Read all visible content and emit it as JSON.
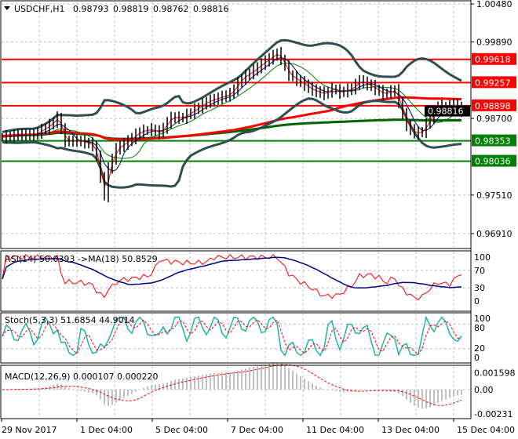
{
  "header": {
    "symbol": "USDCHF,H1",
    "open": "0.98793",
    "high": "0.98819",
    "low": "0.98762",
    "close": "0.98816"
  },
  "chart_data": {
    "type": "line",
    "title": "USDCHF,H1",
    "series": [
      {
        "name": "close",
        "bars": [
          0,
          4,
          8,
          12,
          14,
          16,
          20,
          23,
          24,
          26,
          27,
          29,
          32,
          35,
          38,
          40,
          43,
          46,
          49,
          52,
          55,
          58,
          61,
          64,
          67,
          70,
          71,
          73,
          76,
          79,
          82,
          84,
          86,
          89,
          91,
          94,
          97,
          100,
          101,
          103,
          105,
          107,
          109,
          111,
          113,
          115,
          117
        ],
        "values": [
          0.98409,
          0.98445,
          0.98445,
          0.98592,
          0.98713,
          0.98348,
          0.98348,
          0.98287,
          0.98104,
          0.97495,
          0.97921,
          0.98226,
          0.98348,
          0.98494,
          0.98531,
          0.9847,
          0.98713,
          0.98713,
          0.98835,
          0.98957,
          0.99018,
          0.99079,
          0.99323,
          0.99444,
          0.99591,
          0.99712,
          0.99627,
          0.99383,
          0.99262,
          0.9914,
          0.99079,
          0.99164,
          0.99103,
          0.99164,
          0.99286,
          0.99201,
          0.99079,
          0.9914,
          0.98957,
          0.98592,
          0.9847,
          0.98494,
          0.98713,
          0.98896,
          0.9886,
          0.9892,
          0.98816
        ]
      }
    ],
    "ylim": [
      0.967,
      1.0052
    ],
    "yticks": [
      "1.00480",
      "0.99890",
      "0.98700",
      "0.97510",
      "0.96910"
    ],
    "xticks": [
      "29 Nov 2017",
      "1 Dec 04:00",
      "5 Dec 04:00",
      "7 Dec 04:00",
      "11 Dec 04:00",
      "13 Dec 04:00",
      "15 Dec 04:00"
    ],
    "levels": [
      {
        "price": 0.99618,
        "label": "0.99618",
        "color": "#ff0000"
      },
      {
        "price": 0.99257,
        "label": "0.99257",
        "color": "#ff0000"
      },
      {
        "price": 0.98898,
        "label": "0.98898",
        "color": "#ff0000"
      },
      {
        "price": 0.98353,
        "label": "0.98353",
        "color": "#008000"
      },
      {
        "price": 0.98036,
        "label": "0.98036",
        "color": "#008000"
      }
    ],
    "current_price": {
      "price": 0.98816,
      "label": "0.98816"
    },
    "indicators": {
      "rsi": {
        "label": "RSI(14) 50.0393  ->MA(18) 50.8529",
        "ticks": [
          "100",
          "70",
          "30",
          "0"
        ],
        "levels": [
          100,
          70,
          30,
          0
        ]
      },
      "stoch": {
        "label": "Stoch(5,3,3) 51.6854 44.9014",
        "ticks": [
          "100",
          "80",
          "20",
          "0"
        ],
        "levels": [
          100,
          80,
          20,
          0
        ]
      },
      "macd": {
        "label": "MACD(12,26,9) 0.000107 0.000220",
        "ticks": [
          "0.001598",
          "0.00",
          "-0.00231"
        ],
        "levels": [
          0.001598,
          0,
          -0.00231
        ]
      }
    },
    "colors": {
      "bands": "#2f4f4f",
      "ma_fast": "#ff0000",
      "ma_mid": "#000080",
      "ma_slow": "#008000",
      "ma100": "#ff0000",
      "ma200": "#006400",
      "rsi": "#ff0000",
      "rsi_ma": "#000080",
      "stoch_main": "#20b2aa",
      "stoch_signal": "#ff0000",
      "macd_hist": "#c0c0c0",
      "macd_signal": "#ff0000"
    }
  }
}
